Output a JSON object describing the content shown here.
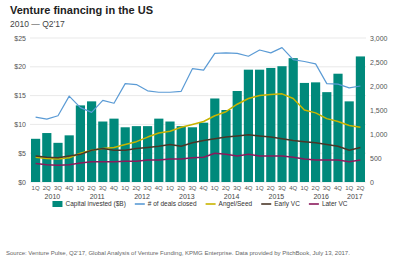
{
  "chart_data": {
    "type": "bar",
    "title": "Venture financing in the US",
    "subtitle": "2010 — Q2’17",
    "annotations": [
      {
        "text": "2010",
        "x": 1.5
      },
      {
        "text": "2011",
        "x": 5.5
      },
      {
        "text": "2012",
        "x": 9.5
      },
      {
        "text": "2013",
        "x": 13.5
      },
      {
        "text": "2014",
        "x": 17.5
      },
      {
        "text": "2015",
        "x": 21.5
      },
      {
        "text": "2016",
        "x": 25.5
      },
      {
        "text": "2017",
        "x": 28.5
      },
      {
        "text": "Source: Venture Pulse, Q2’17, Global Analysis of Venture Funding, KPMG Enterprise. Data provided by PitchBook, July 13, 2017."
      }
    ],
    "categories": [
      "1Q",
      "2Q",
      "3Q",
      "4Q",
      "1Q",
      "2Q",
      "3Q",
      "4Q",
      "1Q",
      "2Q",
      "3Q",
      "4Q",
      "1Q",
      "2Q",
      "3Q",
      "4Q",
      "1Q",
      "2Q",
      "3Q",
      "4Q",
      "1Q",
      "2Q",
      "3Q",
      "4Q",
      "1Q",
      "2Q",
      "3Q",
      "4Q",
      "1Q",
      "2Q"
    ],
    "series": [
      {
        "name": "Capital invested ($B)",
        "type": "bar",
        "color": "#00897B",
        "values": [
          7.5,
          8.5,
          6.8,
          8.1,
          13.3,
          14.0,
          10.5,
          11.0,
          9.5,
          9.7,
          9.7,
          11.0,
          10.5,
          9.7,
          9.5,
          10.3,
          14.5,
          12.5,
          15.8,
          19.5,
          19.5,
          19.8,
          20.1,
          21.5,
          17.2,
          17.3,
          15.6,
          18.8,
          14.0,
          21.8
        ]
      },
      {
        "name": "# of deals closed",
        "type": "line",
        "axis": "y2",
        "color": "#5B9BD5",
        "values": [
          1350,
          1310,
          1380,
          1790,
          1550,
          1450,
          1700,
          1640,
          2050,
          2030,
          1900,
          1870,
          1870,
          1890,
          2360,
          2330,
          2680,
          2690,
          2680,
          2620,
          2750,
          2690,
          2800,
          2550,
          2510,
          2460,
          2050,
          2040,
          1960,
          2000
        ]
      },
      {
        "name": "Angel/Seed",
        "type": "line",
        "color": "#C8B400",
        "values": [
          4.3,
          4.1,
          4.0,
          4.2,
          5.0,
          5.5,
          5.8,
          6.0,
          6.5,
          7.0,
          7.8,
          8.5,
          8.8,
          9.5,
          10.0,
          10.5,
          11.5,
          12.2,
          13.5,
          14.5,
          15.0,
          15.2,
          15.3,
          14.5,
          12.5,
          12.0,
          11.0,
          10.5,
          9.8,
          9.5
        ]
      },
      {
        "name": "Early VC",
        "type": "line",
        "color": "#4A3728",
        "values": [
          4.5,
          4.3,
          4.2,
          4.5,
          4.8,
          5.5,
          5.8,
          5.5,
          5.5,
          5.8,
          6.0,
          6.2,
          6.5,
          6.2,
          6.8,
          7.2,
          7.5,
          7.8,
          8.0,
          8.2,
          8.0,
          7.8,
          7.5,
          7.2,
          7.0,
          6.8,
          6.5,
          6.2,
          5.5,
          6.0
        ]
      },
      {
        "name": "Later VC",
        "type": "line",
        "color": "#8B1A5C",
        "values": [
          3.2,
          3.0,
          2.9,
          3.0,
          3.3,
          3.5,
          3.5,
          3.5,
          3.6,
          3.6,
          3.8,
          3.8,
          4.0,
          4.0,
          4.2,
          4.3,
          5.0,
          4.8,
          4.5,
          4.8,
          4.5,
          4.5,
          4.5,
          4.3,
          4.0,
          3.8,
          3.8,
          3.8,
          3.5,
          3.8
        ]
      }
    ],
    "ylim": [
      0,
      25
    ],
    "yticks": [
      {
        "value": 0,
        "label": "$0"
      },
      {
        "value": 5,
        "label": "$5"
      },
      {
        "value": 10,
        "label": "$10"
      },
      {
        "value": 15,
        "label": "$15"
      },
      {
        "value": 20,
        "label": "$20"
      },
      {
        "value": 25,
        "label": "$25"
      }
    ],
    "y2lim": [
      0,
      3000
    ],
    "y2ticks": [
      0,
      500,
      {
        "value": 1000,
        "label": "1,000"
      },
      {
        "value": 1500,
        "label": "1,500"
      },
      {
        "value": 2000,
        "label": "2,000"
      },
      {
        "value": 2500,
        "label": "2,500"
      },
      {
        "value": 3000,
        "label": "3,000"
      }
    ],
    "grid": true,
    "legend": "bottom"
  }
}
